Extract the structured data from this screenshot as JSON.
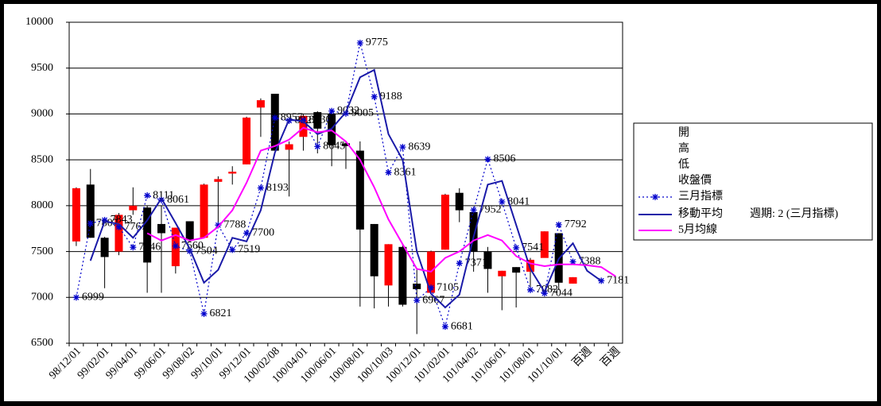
{
  "chart_data": {
    "type": "candlestick",
    "categories": [
      "98/12/01",
      null,
      "99/02/01",
      null,
      "99/04/01",
      null,
      "99/06/01",
      null,
      "99/08/02",
      null,
      "99/10/01",
      null,
      "99/12/01",
      null,
      "100/02/08",
      null,
      "100/04/01",
      null,
      "100/06/01",
      null,
      "100/08/01",
      null,
      "100/10/03",
      null,
      "100/12/01",
      null,
      "101/02/01",
      null,
      "101/04/02",
      null,
      "101/06/01",
      null,
      "101/08/01",
      null,
      "101/10/01",
      null,
      "百週",
      null,
      "百週"
    ],
    "ylim": [
      6500,
      10000
    ],
    "yticks": [
      6500,
      7000,
      7500,
      8000,
      8500,
      9000,
      9500,
      10000
    ],
    "grid": true,
    "candle_colors": {
      "up": "#ff0000",
      "down": "#000000"
    },
    "series": [
      {
        "name": "開",
        "values": [
          7610,
          8230,
          7650,
          7500,
          7950,
          7980,
          7800,
          7340,
          7830,
          7650,
          8260,
          8350,
          8450,
          9070,
          9220,
          8610,
          8750,
          9020,
          9000,
          8680,
          8600,
          7800,
          7130,
          7550,
          7150,
          7050,
          7520,
          8140,
          7930,
          7500,
          7230,
          7330,
          7280,
          7430,
          7700,
          7150,
          null,
          null,
          null
        ]
      },
      {
        "name": "高",
        "values": [
          8200,
          8400,
          7660,
          7920,
          8200,
          8000,
          8000,
          7760,
          7830,
          8240,
          8320,
          8430,
          8970,
          9170,
          9220,
          8700,
          9000,
          9030,
          9010,
          8700,
          8700,
          7800,
          7580,
          7580,
          7300,
          7510,
          8130,
          8190,
          7950,
          7550,
          7290,
          7330,
          7430,
          7720,
          7700,
          7220,
          null,
          null,
          null
        ]
      },
      {
        "name": "低",
        "values": [
          7560,
          7650,
          7100,
          7460,
          7900,
          7050,
          7050,
          7260,
          7600,
          7650,
          7800,
          8230,
          8450,
          8750,
          8600,
          8100,
          8600,
          8570,
          8430,
          8400,
          6900,
          6880,
          6900,
          6900,
          6600,
          7050,
          7520,
          7820,
          7280,
          7050,
          6860,
          6890,
          7100,
          7440,
          7080,
          7150,
          null,
          null,
          null
        ]
      },
      {
        "name": "收盤價",
        "values": [
          8190,
          7650,
          7440,
          7900,
          8000,
          7380,
          7700,
          7760,
          7630,
          8230,
          8290,
          8370,
          8960,
          9150,
          8600,
          8670,
          8980,
          8840,
          8660,
          8650,
          7740,
          7230,
          7580,
          6920,
          7090,
          7500,
          8120,
          7950,
          7500,
          7310,
          7290,
          7270,
          7410,
          7720,
          7160,
          7220,
          null,
          null,
          null
        ]
      },
      {
        "name": "三月指標",
        "color": "#0000cc",
        "style": "dotted",
        "marker": "star",
        "data_labels": true,
        "values": [
          6999,
          7807,
          7843,
          7767,
          7546,
          8111,
          8061,
          7560,
          7504,
          6821,
          7788,
          7519,
          7700,
          8193,
          8957,
          8927,
          8930,
          8645,
          9032,
          9005,
          9775,
          9188,
          8361,
          8639,
          6967,
          7105,
          6681,
          7371,
          7952,
          8506,
          8041,
          7541,
          7082,
          7044,
          7792,
          7388,
          null,
          7181,
          null
        ]
      },
      {
        "name": "移動平均",
        "color": "#1a1aa8",
        "style": "solid",
        "values": [
          null,
          7400,
          7830,
          7800,
          7650,
          7840,
          8080,
          7810,
          7530,
          7160,
          7300,
          7650,
          7610,
          7950,
          8580,
          8940,
          8920,
          8780,
          8840,
          9020,
          9400,
          9480,
          8780,
          8500,
          7500,
          7040,
          6890,
          7030,
          7660,
          8230,
          8270,
          7790,
          7310,
          7060,
          7420,
          7590,
          7290,
          7180,
          null
        ]
      },
      {
        "name": "5月均線",
        "color": "#ff00ff",
        "style": "solid",
        "values": [
          null,
          null,
          null,
          null,
          null,
          7700,
          7620,
          7680,
          7620,
          7650,
          7770,
          7950,
          8250,
          8600,
          8650,
          8720,
          8850,
          8800,
          8820,
          8700,
          8500,
          8200,
          7850,
          7580,
          7310,
          7280,
          7430,
          7500,
          7620,
          7680,
          7620,
          7450,
          7370,
          7340,
          7360,
          7360,
          7350,
          7330,
          7230
        ]
      }
    ],
    "annotation": "週期: 2 (三月指標)"
  }
}
